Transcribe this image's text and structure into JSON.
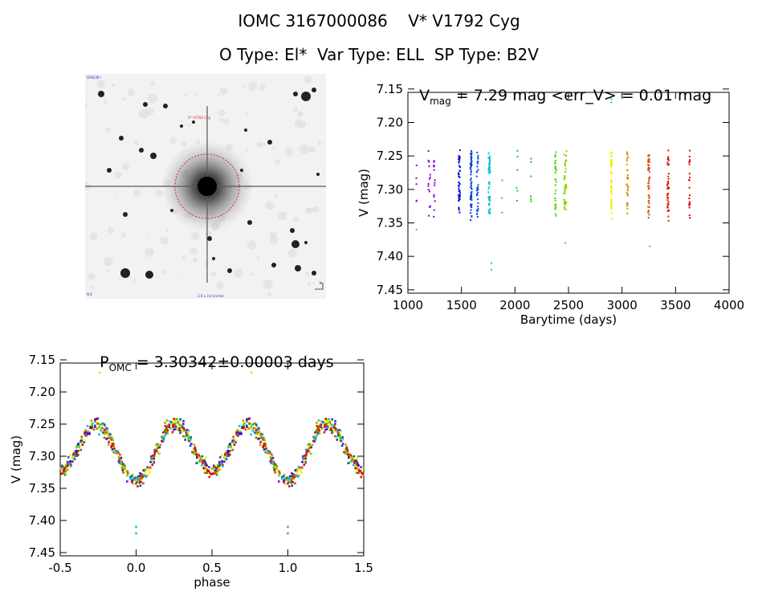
{
  "header": {
    "line1": "IOMC 3167000086    V* V1792 Cyg",
    "line2": "O Type: El*  Var Type: ELL  SP Type: B2V"
  },
  "image_panel": {
    "label_top_left": "DSS2 IR r",
    "label_target": "V* V1792 Cyg",
    "label_bottom_left": "N E",
    "label_bottom_center": "3.0 x 3.0 arcmin",
    "label_compass": "N",
    "colors": {
      "circle": "#dd2222"
    }
  },
  "chart_data": [
    {
      "type": "scatter",
      "title_main": "V",
      "title_sub": "mag",
      "title_rest": " = 7.29 mag <err_V> = 0.01 mag",
      "xlabel": "Barytime (days)",
      "ylabel": "V (mag)",
      "xlim": [
        1000,
        4000
      ],
      "ylim": [
        7.155,
        7.455
      ],
      "y_inverted": true,
      "xticks": [
        "1000",
        "1500",
        "2000",
        "2500",
        "3000",
        "3500",
        "4000"
      ],
      "yticks": [
        "7.15",
        "7.20",
        "7.25",
        "7.30",
        "7.35",
        "7.40",
        "7.45"
      ],
      "period_days": 3.30342,
      "mean_mag": 7.29,
      "amplitude_mag": 0.04,
      "clusters": [
        {
          "t": 1080,
          "hue": 0.78,
          "n": 5,
          "spread": 4
        },
        {
          "t": 1200,
          "hue": 0.77,
          "n": 14,
          "spread": 18
        },
        {
          "t": 1250,
          "hue": 0.76,
          "n": 14,
          "spread": 18
        },
        {
          "t": 1480,
          "hue": 0.66,
          "n": 45,
          "spread": 16
        },
        {
          "t": 1590,
          "hue": 0.62,
          "n": 55,
          "spread": 14
        },
        {
          "t": 1650,
          "hue": 0.6,
          "n": 35,
          "spread": 14
        },
        {
          "t": 1760,
          "hue": 0.52,
          "n": 45,
          "spread": 16
        },
        {
          "t": 1880,
          "hue": 0.47,
          "n": 3,
          "spread": 4
        },
        {
          "t": 2020,
          "hue": 0.36,
          "n": 6,
          "spread": 6
        },
        {
          "t": 2150,
          "hue": 0.33,
          "n": 6,
          "spread": 4
        },
        {
          "t": 2380,
          "hue": 0.28,
          "n": 28,
          "spread": 14
        },
        {
          "t": 2470,
          "hue": 0.23,
          "n": 40,
          "spread": 26
        },
        {
          "t": 2900,
          "hue": 0.16,
          "n": 50,
          "spread": 12
        },
        {
          "t": 3050,
          "hue": 0.11,
          "n": 30,
          "spread": 14
        },
        {
          "t": 3250,
          "hue": 0.06,
          "n": 45,
          "spread": 14
        },
        {
          "t": 3430,
          "hue": 0.02,
          "n": 45,
          "spread": 14
        },
        {
          "t": 3630,
          "hue": 0.0,
          "n": 20,
          "spread": 8
        }
      ],
      "outliers": [
        {
          "x": 1780,
          "y": 7.42
        },
        {
          "x": 1780,
          "y": 7.41
        },
        {
          "x": 2900,
          "y": 7.17
        },
        {
          "x": 2900,
          "y": 7.165
        },
        {
          "x": 2470,
          "y": 7.38
        },
        {
          "x": 3260,
          "y": 7.385
        },
        {
          "x": 1080,
          "y": 7.36
        }
      ]
    },
    {
      "type": "scatter",
      "title_main": "P",
      "title_sub": "OMC",
      "title_rest": " = 3.30342±0.00003 days",
      "xlabel": "phase",
      "ylabel": "V (mag)",
      "xlim": [
        -0.5,
        1.5
      ],
      "ylim": [
        7.155,
        7.455
      ],
      "y_inverted": true,
      "xticks": [
        "-0.5",
        "0.0",
        "0.5",
        "1.0",
        "1.5"
      ],
      "yticks": [
        "7.15",
        "7.20",
        "7.25",
        "7.30",
        "7.35",
        "7.40",
        "7.45"
      ],
      "outliers": [
        {
          "x": -0.24,
          "y": 7.17
        },
        {
          "x": 0.76,
          "y": 7.17
        },
        {
          "x": 0.0,
          "y": 7.41
        },
        {
          "x": 0.0,
          "y": 7.42
        },
        {
          "x": 1.0,
          "y": 7.41
        },
        {
          "x": 1.0,
          "y": 7.42
        }
      ]
    }
  ]
}
